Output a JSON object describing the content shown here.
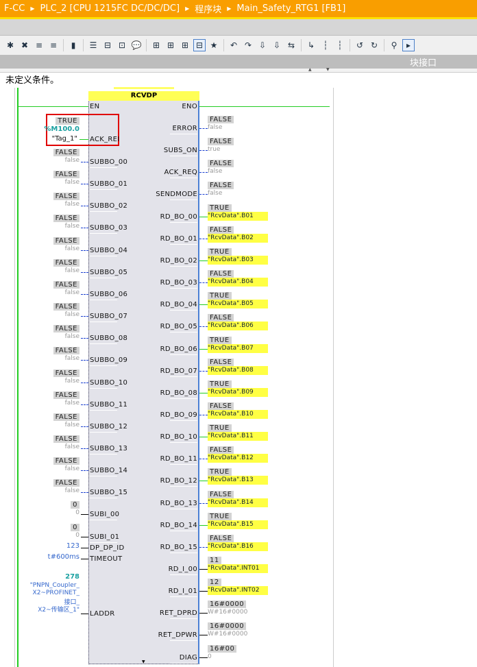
{
  "breadcrumb": [
    "F-CC",
    "PLC_2 [CPU 1215FC DC/DC/DC]",
    "程序块",
    "Main_Safety_RTG1 [FB1]"
  ],
  "toolbar_icons": [
    "insert-network-icon",
    "delete-network-icon",
    "insert-row-icon",
    "add-row-icon",
    "jump-icon",
    "network-list-icon",
    "open-branch-icon",
    "close-branch-icon",
    "comment-icon",
    "operand-display-icon",
    "symbol-display-icon",
    "tag-info-icon",
    "network-comments-icon",
    "favorites-icon",
    "first-error-icon",
    "next-error-icon",
    "prev-download-icon",
    "download-icon",
    "compare-icon",
    "go-to-icon",
    "bookmark-icon",
    "next-bookmark-icon",
    "previous-icon",
    "next-icon",
    "monitor-icon",
    "monitoring-on-icon"
  ],
  "interface_label": "块接口",
  "condition_text": "未定义条件。",
  "block": {
    "name": "RCVDP",
    "en": "EN",
    "eno": "ENO"
  },
  "highlight_input": {
    "value": "TRUE",
    "address": "%M100.0",
    "tag": "\"Tag_1\"",
    "pin": "ACK_REI"
  },
  "left_bool_inputs": [
    {
      "pin": "SUBBO_00",
      "value": "FALSE",
      "param": "false"
    },
    {
      "pin": "SUBBO_01",
      "value": "FALSE",
      "param": "false"
    },
    {
      "pin": "SUBBO_02",
      "value": "FALSE",
      "param": "false"
    },
    {
      "pin": "SUBBO_03",
      "value": "FALSE",
      "param": "false"
    },
    {
      "pin": "SUBBO_04",
      "value": "FALSE",
      "param": "false"
    },
    {
      "pin": "SUBBO_05",
      "value": "FALSE",
      "param": "false"
    },
    {
      "pin": "SUBBO_06",
      "value": "FALSE",
      "param": "false"
    },
    {
      "pin": "SUBBO_07",
      "value": "FALSE",
      "param": "false"
    },
    {
      "pin": "SUBBO_08",
      "value": "FALSE",
      "param": "false"
    },
    {
      "pin": "SUBBO_09",
      "value": "FALSE",
      "param": "false"
    },
    {
      "pin": "SUBBO_10",
      "value": "FALSE",
      "param": "false"
    },
    {
      "pin": "SUBBO_11",
      "value": "FALSE",
      "param": "false"
    },
    {
      "pin": "SUBBO_12",
      "value": "FALSE",
      "param": "false"
    },
    {
      "pin": "SUBBO_13",
      "value": "FALSE",
      "param": "false"
    },
    {
      "pin": "SUBBO_14",
      "value": "FALSE",
      "param": "false"
    },
    {
      "pin": "SUBBO_15",
      "value": "FALSE",
      "param": "false"
    },
    {
      "pin": "SUBI_00",
      "value": "0",
      "param": "0"
    },
    {
      "pin": "SUBI_01",
      "value": "0",
      "param": "0"
    }
  ],
  "left_other_inputs": [
    {
      "pin": "DP_DP_ID",
      "param": "123"
    },
    {
      "pin": "TIMEOUT",
      "param": "t#600ms"
    }
  ],
  "laddr": {
    "pin": "LADDR",
    "value": "278",
    "lines": [
      "\"PNPN_Coupler_",
      "X2~PROFINET_",
      "接口_",
      "X2~传输区_1\""
    ]
  },
  "right_outputs": [
    {
      "pin": "ERROR",
      "value": "FALSE",
      "param": "false"
    },
    {
      "pin": "SUBS_ON",
      "value": "FALSE",
      "param": "true"
    },
    {
      "pin": "ACK_REQ",
      "value": "FALSE",
      "param": "false"
    },
    {
      "pin": "SENDMODE",
      "value": "FALSE",
      "param": "false"
    },
    {
      "pin": "RD_BO_00",
      "value": "TRUE",
      "operand": "\"RcvData\".B01"
    },
    {
      "pin": "RD_BO_01",
      "value": "FALSE",
      "operand": "\"RcvData\".B02"
    },
    {
      "pin": "RD_BO_02",
      "value": "TRUE",
      "operand": "\"RcvData\".B03"
    },
    {
      "pin": "RD_BO_03",
      "value": "FALSE",
      "operand": "\"RcvData\".B04"
    },
    {
      "pin": "RD_BO_04",
      "value": "TRUE",
      "operand": "\"RcvData\".B05"
    },
    {
      "pin": "RD_BO_05",
      "value": "FALSE",
      "operand": "\"RcvData\".B06"
    },
    {
      "pin": "RD_BO_06",
      "value": "TRUE",
      "operand": "\"RcvData\".B07"
    },
    {
      "pin": "RD_BO_07",
      "value": "FALSE",
      "operand": "\"RcvData\".B08"
    },
    {
      "pin": "RD_BO_08",
      "value": "TRUE",
      "operand": "\"RcvData\".B09"
    },
    {
      "pin": "RD_BO_09",
      "value": "FALSE",
      "operand": "\"RcvData\".B10"
    },
    {
      "pin": "RD_BO_10",
      "value": "TRUE",
      "operand": "\"RcvData\".B11"
    },
    {
      "pin": "RD_BO_11",
      "value": "FALSE",
      "operand": "\"RcvData\".B12"
    },
    {
      "pin": "RD_BO_12",
      "value": "TRUE",
      "operand": "\"RcvData\".B13"
    },
    {
      "pin": "RD_BO_13",
      "value": "FALSE",
      "operand": "\"RcvData\".B14"
    },
    {
      "pin": "RD_BO_14",
      "value": "TRUE",
      "operand": "\"RcvData\".B15"
    },
    {
      "pin": "RD_BO_15",
      "value": "FALSE",
      "operand": "\"RcvData\".B16"
    },
    {
      "pin": "RD_I_00",
      "value": "11",
      "operand": "\"RcvData\".INT01"
    },
    {
      "pin": "RD_I_01",
      "value": "12",
      "operand": "\"RcvData\".INT02"
    },
    {
      "pin": "RET_DPRD",
      "value": "16#0000",
      "param": "W#16#0000"
    },
    {
      "pin": "RET_DPWR",
      "value": "16#0000",
      "param": "W#16#0000"
    },
    {
      "pin": "DIAG",
      "value": "16#00",
      "param": "0"
    }
  ],
  "colors": {
    "title_bar": "#f99e00",
    "accent_line": "#ffe100",
    "power_flow": "#22cc22",
    "block_header": "#ffff55",
    "highlight": "#e00000"
  }
}
